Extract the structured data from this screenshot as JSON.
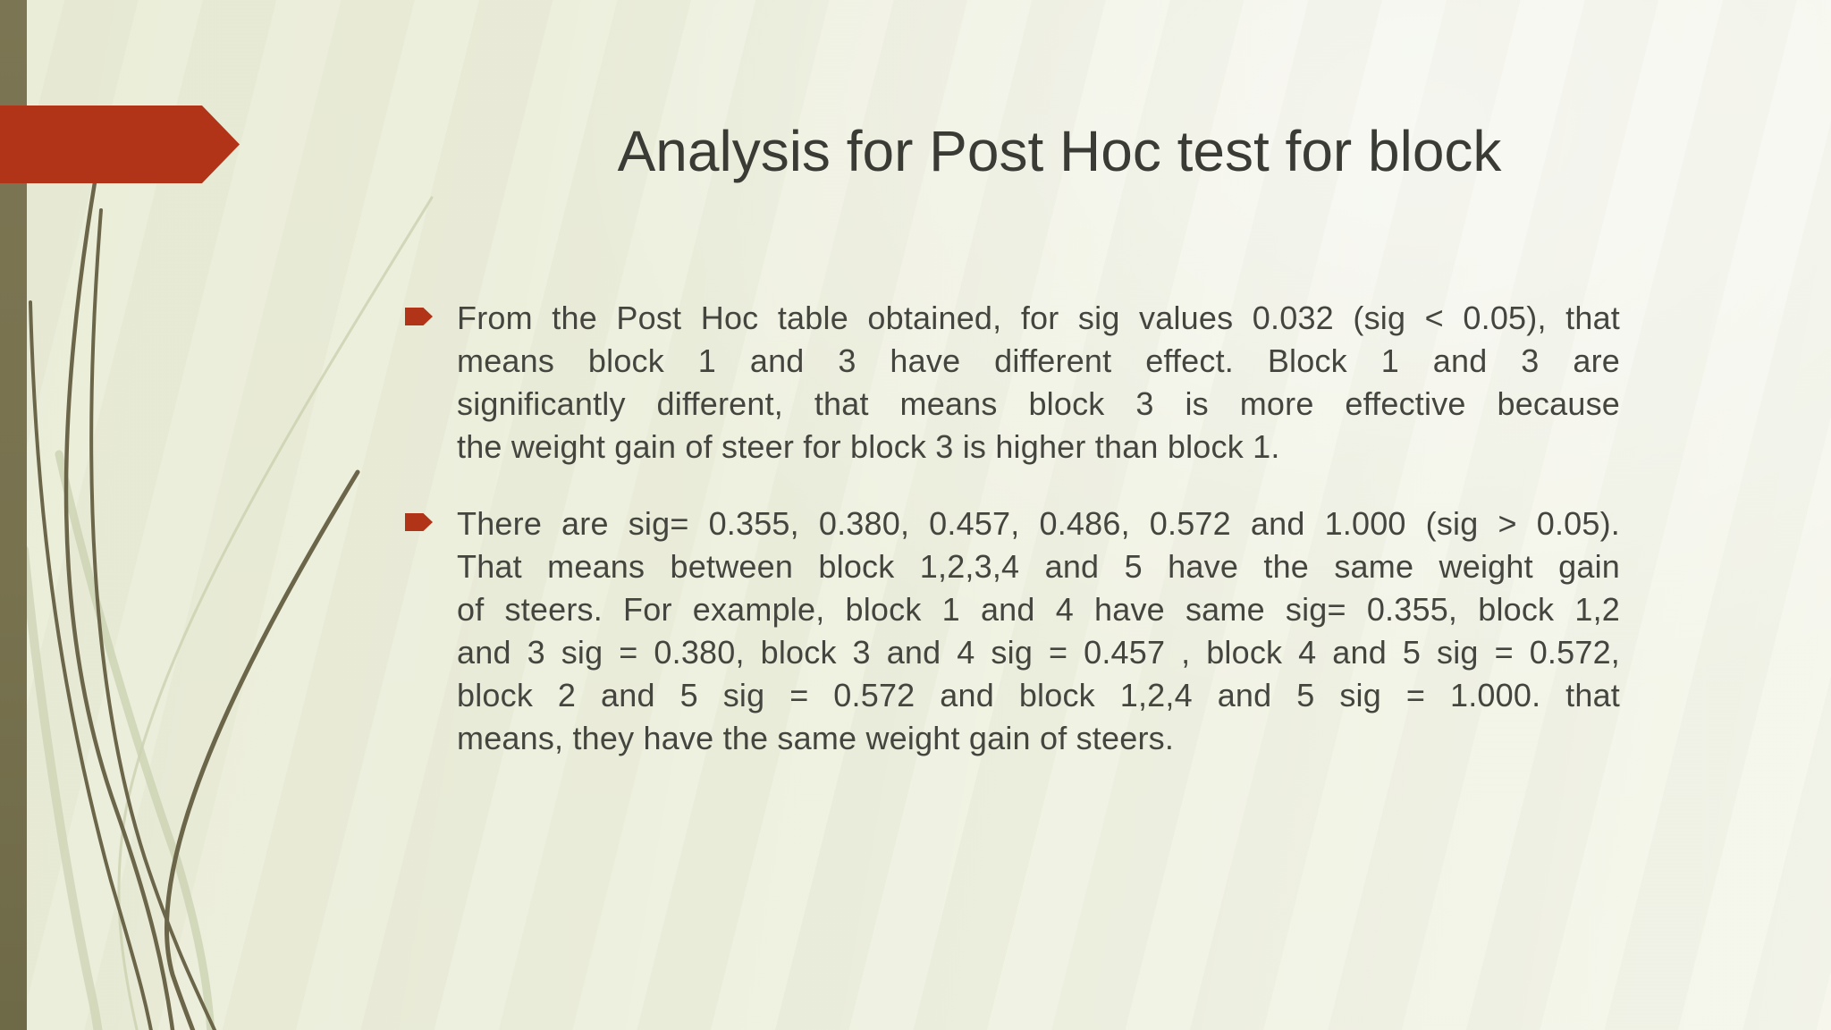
{
  "slide": {
    "title": "Analysis for Post Hoc test for block",
    "bullets": [
      {
        "lines": [
          "From the Post Hoc table obtained, for sig values 0.032 (sig < 0.05), that",
          "means block 1 and 3 have different effect. Block 1 and 3 are",
          "significantly different, that means block 3 is more effective because",
          "the weight gain of steer for block 3 is higher than block 1."
        ]
      },
      {
        "lines": [
          "There are sig= 0.355, 0.380, 0.457, 0.486, 0.572 and 1.000 (sig > 0.05).",
          "That means between block 1,2,3,4 and 5 have the same weight gain",
          "of steers. For example, block 1 and 4 have same sig= 0.355, block 1,2",
          "and 3 sig = 0.380, block 3 and 4 sig = 0.457 , block 4 and 5 sig = 0.572,",
          "block 2 and 5 sig = 0.572 and block 1,2,4 and 5 sig = 1.000. that",
          "means, they have the same weight gain of steers."
        ]
      }
    ]
  },
  "theme": {
    "name": "wisp-presentation-slide",
    "colors": {
      "background": "#e9ecd6",
      "background_light": "#f4f5ec",
      "edge_bar": "#78724f",
      "accent_red": "#b23418",
      "grass_dark": "#6b654a",
      "grass_light": "#ccd2b2",
      "title_text": "#3b3b35",
      "body_text": "#45453f"
    },
    "decorations": [
      "left-edge-bar",
      "red-arrow-banner",
      "grass-blades-bottom-left",
      "bullet-arrow-icon"
    ]
  }
}
